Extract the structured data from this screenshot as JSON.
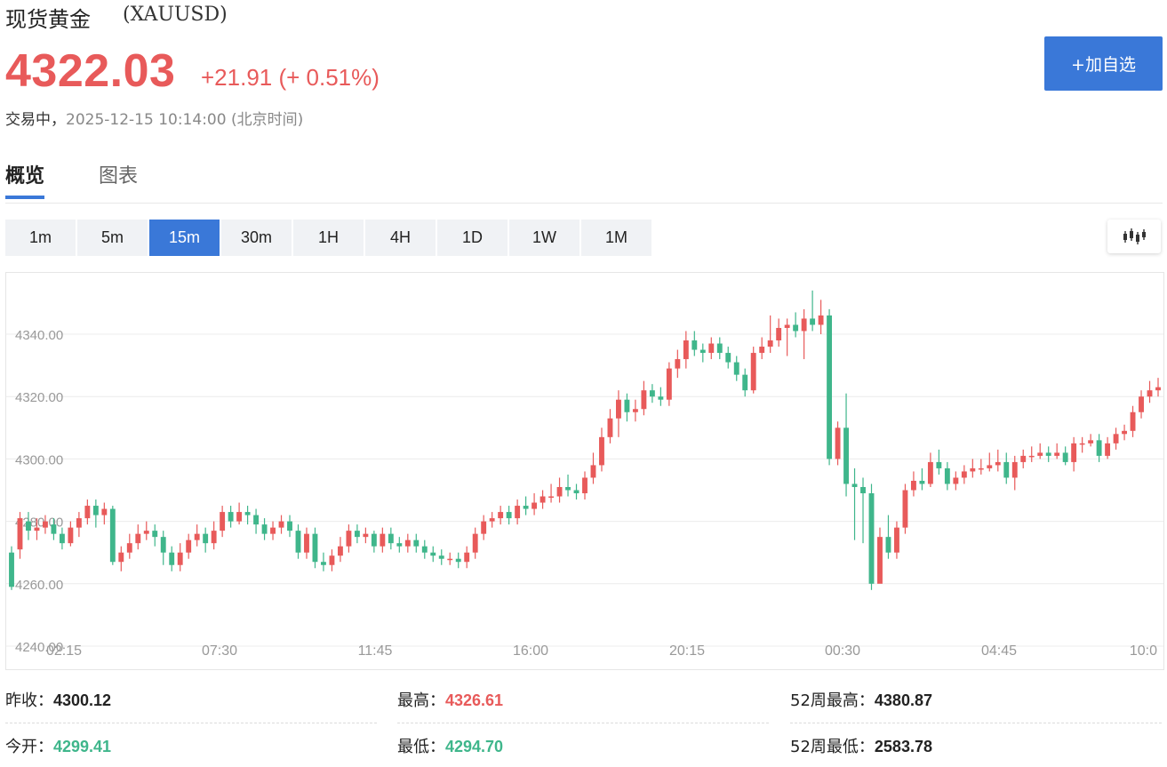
{
  "header": {
    "name": "现货黄金",
    "symbol": "(XAUUSD)",
    "price": "4322.03",
    "change": "+21.91 (+ 0.51%)",
    "status": "交易中，",
    "timestamp": "2025-12-15 10:14:00",
    "timezone": "(北京时间)"
  },
  "add_button": "+加自选",
  "tabs": [
    "概览",
    "图表"
  ],
  "intervals": [
    "1m",
    "5m",
    "15m",
    "30m",
    "1H",
    "4H",
    "1D",
    "1W",
    "1M"
  ],
  "active_interval": "15m",
  "colors": {
    "up": "#e85a5a",
    "down": "#3fb68b",
    "accent": "#3a78d8"
  },
  "chart_data": {
    "type": "candlestick",
    "ylim": [
      4240,
      4360
    ],
    "y_ticks": [
      "4240.00",
      "4260.00",
      "4280.00",
      "4300.00",
      "4320.00",
      "4340.00"
    ],
    "x_ticks": [
      "02:15",
      "07:30",
      "11:45",
      "16:00",
      "20:15",
      "00:30",
      "04:45",
      "10:0"
    ],
    "grid": true,
    "legend": "none",
    "candles": [
      [
        4270,
        4259,
        4272,
        4258
      ],
      [
        4271,
        4281,
        4283,
        4268
      ],
      [
        4280,
        4277,
        4283,
        4274
      ],
      [
        4277,
        4278,
        4281,
        4274
      ],
      [
        4278,
        4280,
        4282,
        4276
      ],
      [
        4279,
        4276,
        4281,
        4274
      ],
      [
        4276,
        4273,
        4278,
        4271
      ],
      [
        4273,
        4278,
        4280,
        4272
      ],
      [
        4278,
        4281,
        4283,
        4275
      ],
      [
        4281,
        4285,
        4287,
        4279
      ],
      [
        4285,
        4282,
        4287,
        4278
      ],
      [
        4282,
        4284,
        4286,
        4279
      ],
      [
        4284,
        4267,
        4285,
        4266
      ],
      [
        4267,
        4270,
        4272,
        4264
      ],
      [
        4270,
        4273,
        4276,
        4268
      ],
      [
        4273,
        4276,
        4279,
        4271
      ],
      [
        4276,
        4277,
        4280,
        4274
      ],
      [
        4277,
        4275,
        4279,
        4272
      ],
      [
        4275,
        4270,
        4277,
        4266
      ],
      [
        4270,
        4266,
        4272,
        4264
      ],
      [
        4266,
        4270,
        4273,
        4264
      ],
      [
        4270,
        4274,
        4276,
        4268
      ],
      [
        4274,
        4276,
        4279,
        4272
      ],
      [
        4276,
        4273,
        4278,
        4270
      ],
      [
        4273,
        4277,
        4280,
        4271
      ],
      [
        4277,
        4283,
        4285,
        4275
      ],
      [
        4283,
        4280,
        4285,
        4278
      ],
      [
        4280,
        4283,
        4286,
        4279
      ],
      [
        4283,
        4282,
        4285,
        4279
      ],
      [
        4282,
        4279,
        4284,
        4276
      ],
      [
        4279,
        4276,
        4281,
        4274
      ],
      [
        4276,
        4278,
        4280,
        4274
      ],
      [
        4278,
        4280,
        4282,
        4276
      ],
      [
        4280,
        4277,
        4282,
        4275
      ],
      [
        4277,
        4270,
        4279,
        4268
      ],
      [
        4270,
        4276,
        4278,
        4268
      ],
      [
        4276,
        4267,
        4278,
        4265
      ],
      [
        4267,
        4266,
        4270,
        4264
      ],
      [
        4266,
        4269,
        4271,
        4264
      ],
      [
        4269,
        4272,
        4275,
        4267
      ],
      [
        4272,
        4277,
        4279,
        4270
      ],
      [
        4277,
        4275,
        4279,
        4273
      ],
      [
        4275,
        4276,
        4278,
        4273
      ],
      [
        4276,
        4272,
        4277,
        4270
      ],
      [
        4272,
        4276,
        4278,
        4270
      ],
      [
        4276,
        4273,
        4278,
        4271
      ],
      [
        4273,
        4272,
        4275,
        4270
      ],
      [
        4272,
        4274,
        4276,
        4270
      ],
      [
        4274,
        4272,
        4276,
        4270
      ],
      [
        4272,
        4270,
        4274,
        4268
      ],
      [
        4270,
        4269,
        4272,
        4267
      ],
      [
        4269,
        4268,
        4271,
        4266
      ],
      [
        4268,
        4268,
        4270,
        4266
      ],
      [
        4268,
        4267,
        4270,
        4265
      ],
      [
        4267,
        4270,
        4272,
        4265
      ],
      [
        4270,
        4276,
        4278,
        4268
      ],
      [
        4276,
        4280,
        4282,
        4274
      ],
      [
        4280,
        4281,
        4283,
        4278
      ],
      [
        4281,
        4283,
        4285,
        4279
      ],
      [
        4283,
        4281,
        4285,
        4279
      ],
      [
        4281,
        4285,
        4287,
        4279
      ],
      [
        4285,
        4284,
        4288,
        4282
      ],
      [
        4284,
        4286,
        4289,
        4282
      ],
      [
        4286,
        4288,
        4290,
        4284
      ],
      [
        4288,
        4288,
        4292,
        4286
      ],
      [
        4288,
        4291,
        4294,
        4286
      ],
      [
        4291,
        4290,
        4295,
        4288
      ],
      [
        4290,
        4289,
        4292,
        4287
      ],
      [
        4289,
        4294,
        4296,
        4287
      ],
      [
        4294,
        4298,
        4302,
        4292
      ],
      [
        4298,
        4307,
        4310,
        4296
      ],
      [
        4307,
        4313,
        4316,
        4305
      ],
      [
        4313,
        4319,
        4322,
        4307
      ],
      [
        4319,
        4315,
        4321,
        4312
      ],
      [
        4315,
        4316,
        4319,
        4312
      ],
      [
        4316,
        4322,
        4325,
        4314
      ],
      [
        4322,
        4320,
        4324,
        4318
      ],
      [
        4320,
        4319,
        4323,
        4317
      ],
      [
        4319,
        4329,
        4331,
        4317
      ],
      [
        4329,
        4332,
        4335,
        4326
      ],
      [
        4332,
        4338,
        4341,
        4329
      ],
      [
        4338,
        4335,
        4341,
        4333
      ],
      [
        4335,
        4334,
        4337,
        4331
      ],
      [
        4334,
        4337,
        4339,
        4332
      ],
      [
        4337,
        4334,
        4339,
        4332
      ],
      [
        4334,
        4331,
        4336,
        4329
      ],
      [
        4331,
        4327,
        4333,
        4325
      ],
      [
        4327,
        4322,
        4329,
        4320
      ],
      [
        4322,
        4334,
        4336,
        4321
      ],
      [
        4334,
        4336,
        4339,
        4332
      ],
      [
        4336,
        4338,
        4346,
        4334
      ],
      [
        4338,
        4342,
        4345,
        4336
      ],
      [
        4342,
        4343,
        4345,
        4333
      ],
      [
        4343,
        4341,
        4347,
        4339
      ],
      [
        4341,
        4345,
        4348,
        4332
      ],
      [
        4345,
        4343,
        4354,
        4341
      ],
      [
        4343,
        4346,
        4351,
        4340
      ],
      [
        4346,
        4300,
        4348,
        4298
      ],
      [
        4300,
        4310,
        4312,
        4298
      ],
      [
        4310,
        4292,
        4321,
        4288
      ],
      [
        4292,
        4291,
        4297,
        4274
      ],
      [
        4291,
        4289,
        4294,
        4273
      ],
      [
        4289,
        4260,
        4292,
        4258
      ],
      [
        4260,
        4275,
        4278,
        4267
      ],
      [
        4275,
        4270,
        4282,
        4268
      ],
      [
        4270,
        4278,
        4280,
        4268
      ],
      [
        4278,
        4290,
        4292,
        4276
      ],
      [
        4290,
        4293,
        4296,
        4288
      ],
      [
        4293,
        4292,
        4297,
        4290
      ],
      [
        4292,
        4299,
        4302,
        4291
      ],
      [
        4299,
        4297,
        4303,
        4295
      ],
      [
        4297,
        4292,
        4299,
        4290
      ],
      [
        4292,
        4294,
        4296,
        4290
      ],
      [
        4294,
        4296,
        4298,
        4292
      ],
      [
        4296,
        4297,
        4300,
        4294
      ],
      [
        4297,
        4297,
        4300,
        4295
      ],
      [
        4297,
        4298,
        4302,
        4296
      ],
      [
        4298,
        4299,
        4303,
        4296
      ],
      [
        4299,
        4294,
        4302,
        4292
      ],
      [
        4294,
        4299,
        4301,
        4290
      ],
      [
        4299,
        4301,
        4303,
        4297
      ],
      [
        4301,
        4301,
        4304,
        4299
      ],
      [
        4301,
        4302,
        4305,
        4300
      ],
      [
        4302,
        4301,
        4304,
        4299
      ],
      [
        4301,
        4302,
        4305,
        4300
      ],
      [
        4302,
        4299,
        4304,
        4298
      ],
      [
        4299,
        4305,
        4307,
        4296
      ],
      [
        4305,
        4305,
        4307,
        4302
      ],
      [
        4305,
        4306,
        4308,
        4304
      ],
      [
        4306,
        4301,
        4308,
        4299
      ],
      [
        4301,
        4305,
        4307,
        4300
      ],
      [
        4305,
        4308,
        4310,
        4303
      ],
      [
        4308,
        4309,
        4311,
        4306
      ],
      [
        4309,
        4315,
        4317,
        4307
      ],
      [
        4315,
        4320,
        4322,
        4313
      ],
      [
        4320,
        4322,
        4325,
        4318
      ],
      [
        4322,
        4323,
        4326,
        4320
      ]
    ]
  },
  "stats": [
    {
      "label": "昨收：",
      "value": "4300.12",
      "tone": "plain"
    },
    {
      "label": "最高：",
      "value": "4326.61",
      "tone": "up"
    },
    {
      "label": "52周最高：",
      "value": "4380.87",
      "tone": "plain"
    },
    {
      "label": "今开：",
      "value": "4299.41",
      "tone": "down"
    },
    {
      "label": "最低：",
      "value": "4294.70",
      "tone": "down"
    },
    {
      "label": "52周最低：",
      "value": "2583.78",
      "tone": "plain"
    }
  ]
}
